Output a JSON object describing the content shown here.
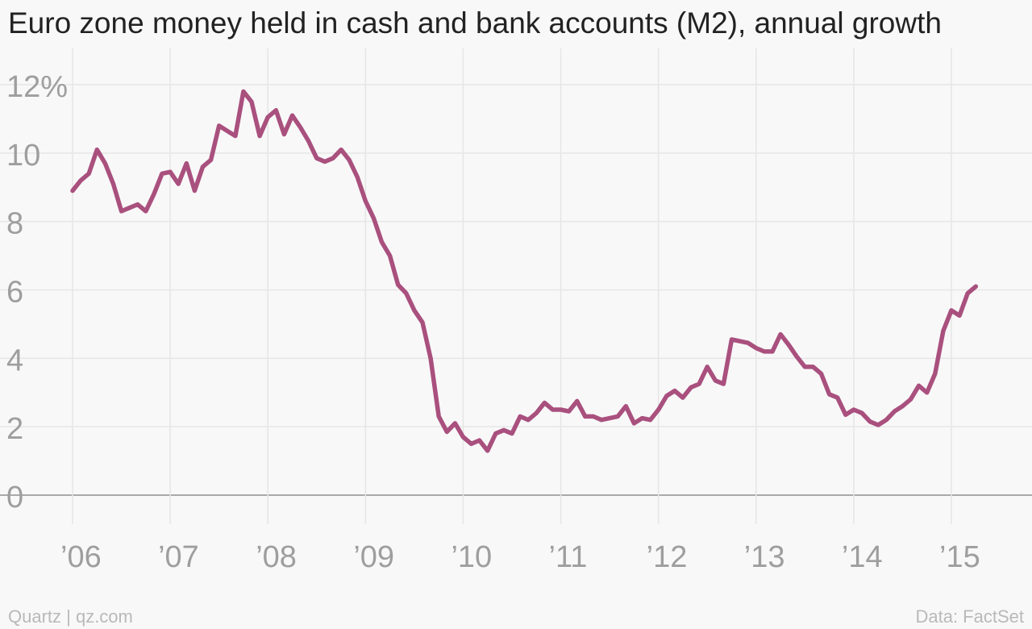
{
  "chart_data": {
    "type": "line",
    "title": "Euro zone money held in cash and bank accounts (M2), annual growth",
    "xlabel": "",
    "ylabel": "",
    "ylim": [
      0,
      12
    ],
    "xlim": [
      "2006-01",
      "2015-06"
    ],
    "yticks": [
      0,
      2,
      4,
      6,
      8,
      10,
      12
    ],
    "ytick_labels": [
      "0",
      "2",
      "4",
      "6",
      "8",
      "10",
      "12%"
    ],
    "xticks": [
      "2006-01",
      "2007-01",
      "2008-01",
      "2009-01",
      "2010-01",
      "2011-01",
      "2012-01",
      "2013-01",
      "2014-01",
      "2015-01"
    ],
    "xtick_labels": [
      "’06",
      "’07",
      "’08",
      "’09",
      "’10",
      "’11",
      "’12",
      "’13",
      "’14",
      "’15"
    ],
    "grid": true,
    "line_color": "#a9507e",
    "series": [
      {
        "values": [
          {
            "x": "2006-01",
            "y": 8.9
          },
          {
            "x": "2006-02",
            "y": 9.2
          },
          {
            "x": "2006-03",
            "y": 9.4
          },
          {
            "x": "2006-04",
            "y": 10.1
          },
          {
            "x": "2006-05",
            "y": 9.7
          },
          {
            "x": "2006-06",
            "y": 9.1
          },
          {
            "x": "2006-07",
            "y": 8.3
          },
          {
            "x": "2006-08",
            "y": 8.4
          },
          {
            "x": "2006-09",
            "y": 8.5
          },
          {
            "x": "2006-10",
            "y": 8.3
          },
          {
            "x": "2006-11",
            "y": 8.8
          },
          {
            "x": "2006-12",
            "y": 9.4
          },
          {
            "x": "2007-01",
            "y": 9.45
          },
          {
            "x": "2007-02",
            "y": 9.1
          },
          {
            "x": "2007-03",
            "y": 9.7
          },
          {
            "x": "2007-04",
            "y": 8.9
          },
          {
            "x": "2007-05",
            "y": 9.6
          },
          {
            "x": "2007-06",
            "y": 9.8
          },
          {
            "x": "2007-07",
            "y": 10.8
          },
          {
            "x": "2007-08",
            "y": 10.65
          },
          {
            "x": "2007-09",
            "y": 10.5
          },
          {
            "x": "2007-10",
            "y": 11.8
          },
          {
            "x": "2007-11",
            "y": 11.5
          },
          {
            "x": "2007-12",
            "y": 10.5
          },
          {
            "x": "2008-01",
            "y": 11.05
          },
          {
            "x": "2008-02",
            "y": 11.25
          },
          {
            "x": "2008-03",
            "y": 10.55
          },
          {
            "x": "2008-04",
            "y": 11.1
          },
          {
            "x": "2008-05",
            "y": 10.75
          },
          {
            "x": "2008-06",
            "y": 10.35
          },
          {
            "x": "2008-07",
            "y": 9.85
          },
          {
            "x": "2008-08",
            "y": 9.75
          },
          {
            "x": "2008-09",
            "y": 9.85
          },
          {
            "x": "2008-10",
            "y": 10.1
          },
          {
            "x": "2008-11",
            "y": 9.8
          },
          {
            "x": "2008-12",
            "y": 9.3
          },
          {
            "x": "2009-01",
            "y": 8.6
          },
          {
            "x": "2009-02",
            "y": 8.1
          },
          {
            "x": "2009-03",
            "y": 7.4
          },
          {
            "x": "2009-04",
            "y": 7.0
          },
          {
            "x": "2009-05",
            "y": 6.15
          },
          {
            "x": "2009-06",
            "y": 5.9
          },
          {
            "x": "2009-07",
            "y": 5.4
          },
          {
            "x": "2009-08",
            "y": 5.05
          },
          {
            "x": "2009-09",
            "y": 4.0
          },
          {
            "x": "2009-10",
            "y": 2.3
          },
          {
            "x": "2009-11",
            "y": 1.85
          },
          {
            "x": "2009-12",
            "y": 2.1
          },
          {
            "x": "2010-01",
            "y": 1.7
          },
          {
            "x": "2010-02",
            "y": 1.5
          },
          {
            "x": "2010-03",
            "y": 1.6
          },
          {
            "x": "2010-04",
            "y": 1.3
          },
          {
            "x": "2010-05",
            "y": 1.8
          },
          {
            "x": "2010-06",
            "y": 1.9
          },
          {
            "x": "2010-07",
            "y": 1.8
          },
          {
            "x": "2010-08",
            "y": 2.3
          },
          {
            "x": "2010-09",
            "y": 2.2
          },
          {
            "x": "2010-10",
            "y": 2.4
          },
          {
            "x": "2010-11",
            "y": 2.7
          },
          {
            "x": "2010-12",
            "y": 2.5
          },
          {
            "x": "2011-01",
            "y": 2.5
          },
          {
            "x": "2011-02",
            "y": 2.45
          },
          {
            "x": "2011-03",
            "y": 2.75
          },
          {
            "x": "2011-04",
            "y": 2.3
          },
          {
            "x": "2011-05",
            "y": 2.3
          },
          {
            "x": "2011-06",
            "y": 2.2
          },
          {
            "x": "2011-07",
            "y": 2.25
          },
          {
            "x": "2011-08",
            "y": 2.3
          },
          {
            "x": "2011-09",
            "y": 2.6
          },
          {
            "x": "2011-10",
            "y": 2.1
          },
          {
            "x": "2011-11",
            "y": 2.25
          },
          {
            "x": "2011-12",
            "y": 2.2
          },
          {
            "x": "2012-01",
            "y": 2.5
          },
          {
            "x": "2012-02",
            "y": 2.9
          },
          {
            "x": "2012-03",
            "y": 3.05
          },
          {
            "x": "2012-04",
            "y": 2.85
          },
          {
            "x": "2012-05",
            "y": 3.15
          },
          {
            "x": "2012-06",
            "y": 3.25
          },
          {
            "x": "2012-07",
            "y": 3.75
          },
          {
            "x": "2012-08",
            "y": 3.35
          },
          {
            "x": "2012-09",
            "y": 3.25
          },
          {
            "x": "2012-10",
            "y": 4.55
          },
          {
            "x": "2012-11",
            "y": 4.5
          },
          {
            "x": "2012-12",
            "y": 4.45
          },
          {
            "x": "2013-01",
            "y": 4.3
          },
          {
            "x": "2013-02",
            "y": 4.2
          },
          {
            "x": "2013-03",
            "y": 4.2
          },
          {
            "x": "2013-04",
            "y": 4.7
          },
          {
            "x": "2013-05",
            "y": 4.4
          },
          {
            "x": "2013-06",
            "y": 4.05
          },
          {
            "x": "2013-07",
            "y": 3.75
          },
          {
            "x": "2013-08",
            "y": 3.75
          },
          {
            "x": "2013-09",
            "y": 3.55
          },
          {
            "x": "2013-10",
            "y": 2.95
          },
          {
            "x": "2013-11",
            "y": 2.85
          },
          {
            "x": "2013-12",
            "y": 2.35
          },
          {
            "x": "2014-01",
            "y": 2.5
          },
          {
            "x": "2014-02",
            "y": 2.4
          },
          {
            "x": "2014-03",
            "y": 2.15
          },
          {
            "x": "2014-04",
            "y": 2.05
          },
          {
            "x": "2014-05",
            "y": 2.2
          },
          {
            "x": "2014-06",
            "y": 2.45
          },
          {
            "x": "2014-07",
            "y": 2.6
          },
          {
            "x": "2014-08",
            "y": 2.8
          },
          {
            "x": "2014-09",
            "y": 3.2
          },
          {
            "x": "2014-10",
            "y": 3.0
          },
          {
            "x": "2014-11",
            "y": 3.55
          },
          {
            "x": "2014-12",
            "y": 4.8
          },
          {
            "x": "2015-01",
            "y": 5.4
          },
          {
            "x": "2015-02",
            "y": 5.25
          },
          {
            "x": "2015-03",
            "y": 5.9
          },
          {
            "x": "2015-04",
            "y": 6.1
          }
        ]
      }
    ]
  },
  "footer": {
    "source_label": "Quartz | qz.com",
    "credit_label": "Data: FactSet"
  }
}
